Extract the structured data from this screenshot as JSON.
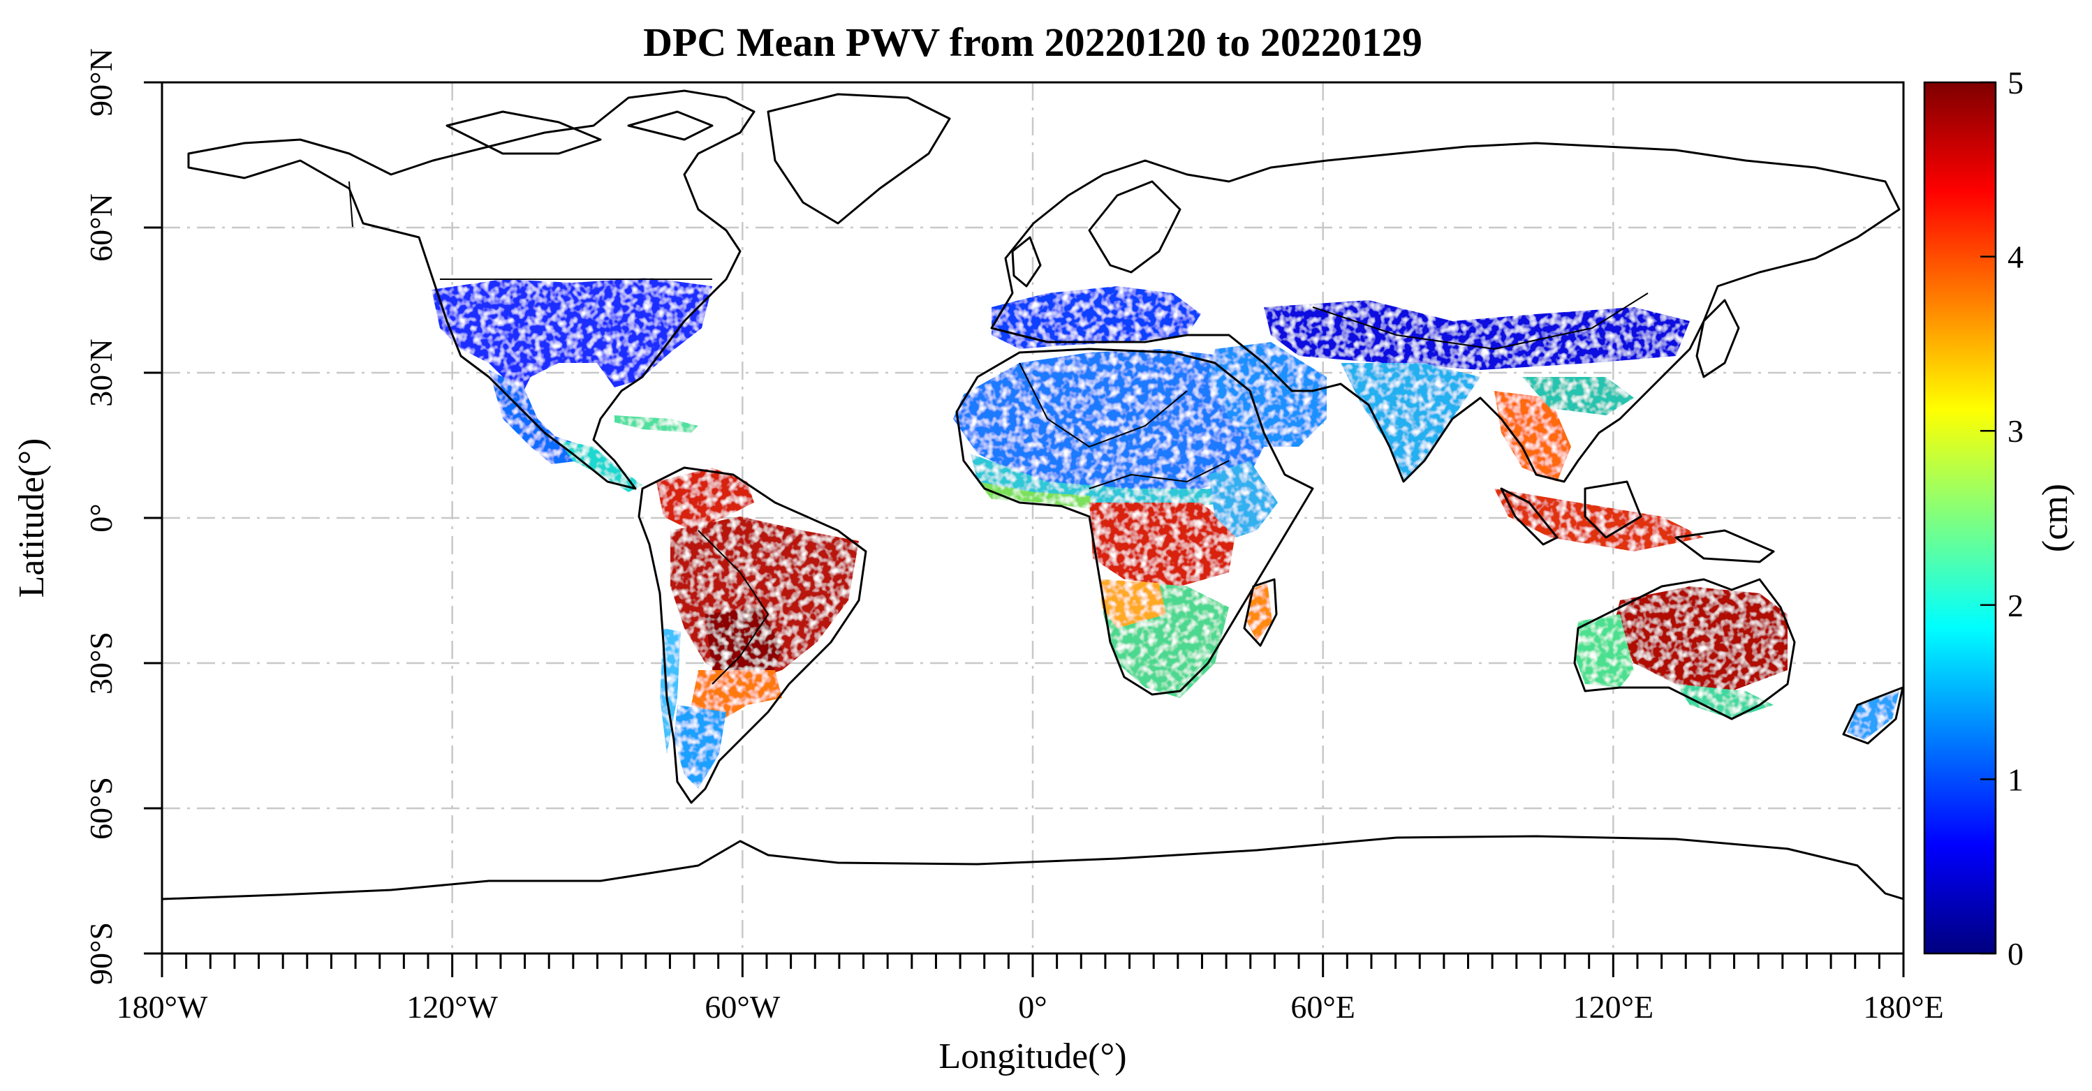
{
  "figure": {
    "title": "DPC Mean PWV from 20220120 to 20220129",
    "xlabel": "Longitude(°)",
    "ylabel": "Latitude(°)",
    "x_tick_labels": [
      "180°W",
      "120°W",
      "60°W",
      "0°",
      "60°E",
      "120°E",
      "180°E"
    ],
    "y_tick_labels": [
      "90°N",
      "60°N",
      "30°N",
      "0°",
      "30°S",
      "60°S",
      "90°S"
    ],
    "colorbar": {
      "label": "(cm)",
      "tick_labels": [
        "5",
        "4",
        "3",
        "2",
        "1",
        "0"
      ],
      "min": 0,
      "max": 5,
      "colormap": [
        "#00007f",
        "#0000ff",
        "#007fff",
        "#00ffff",
        "#7fff7f",
        "#ffff00",
        "#ff7f00",
        "#ff0000",
        "#7f0000"
      ]
    }
  },
  "chart_data": {
    "type": "heatmap",
    "title": "DPC Mean PWV from 20220120 to 20220129",
    "xlabel": "Longitude(°)",
    "ylabel": "Latitude(°)",
    "xlim": [
      -180,
      180
    ],
    "ylim": [
      -90,
      90
    ],
    "x_ticks": [
      -180,
      -120,
      -60,
      0,
      60,
      120,
      180
    ],
    "y_ticks": [
      90,
      60,
      30,
      0,
      -30,
      -60,
      -90
    ],
    "colorbar_label": "(cm)",
    "colorbar_range": [
      0,
      5
    ],
    "colorbar_ticks": [
      0,
      1,
      2,
      3,
      4,
      5
    ],
    "grid": true
  }
}
